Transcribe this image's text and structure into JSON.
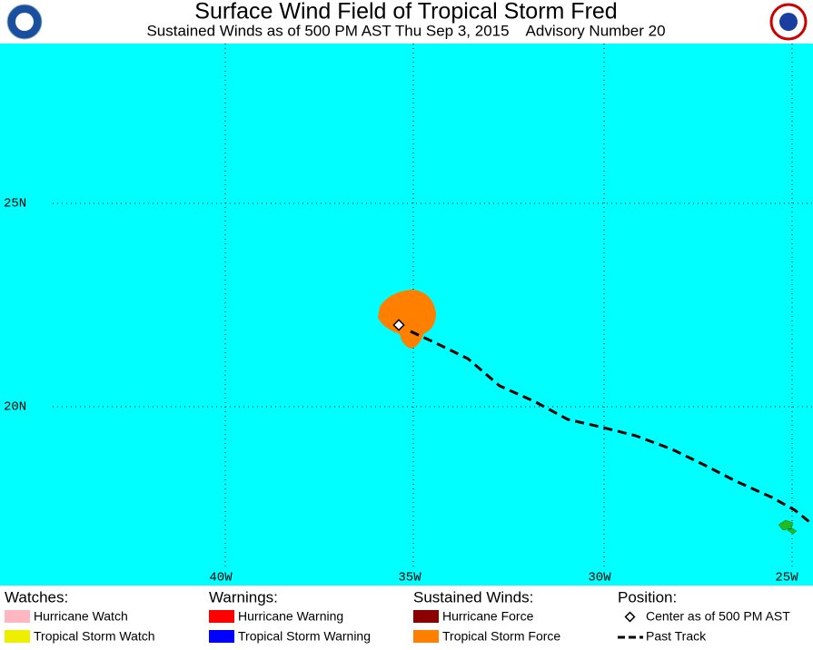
{
  "header": {
    "title": "Surface Wind Field of Tropical Storm Fred",
    "subtitle": "Sustained Winds as of 500 PM AST Thu Sep 3, 2015    Advisory Number 20"
  },
  "map": {
    "lat_labels": [
      "25N",
      "20N"
    ],
    "lon_labels": [
      "40W",
      "35W",
      "30W",
      "25W"
    ]
  },
  "legend": [
    {
      "heading": "Watches:",
      "items": [
        "Hurricane Watch",
        "Tropical Storm Watch"
      ]
    },
    {
      "heading": "Warnings:",
      "items": [
        "Hurricane Warning",
        "Tropical Storm Warning"
      ]
    },
    {
      "heading": "Sustained Winds:",
      "items": [
        "Hurricane Force",
        "Tropical Storm Force"
      ]
    },
    {
      "heading": "Position:",
      "items": [
        "Center as of 500 PM AST",
        "Past Track"
      ]
    }
  ]
}
